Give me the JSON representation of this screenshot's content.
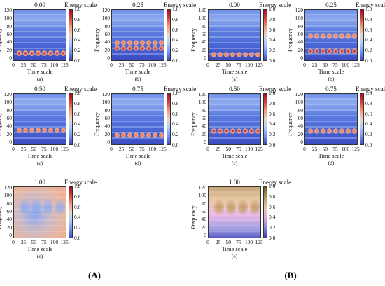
{
  "colors": {
    "scale_low": "#3b4cc0",
    "scale_high": "#b40426",
    "scale_e_low": "#3b3fb0",
    "scale_e_high": "#6e5a22"
  },
  "labels": {
    "energy": "Energy scale",
    "ylabel": "Frequency",
    "xlabel": "Time scale"
  },
  "group_labels": [
    "(A)",
    "(B)"
  ],
  "chart_data": {
    "type": "heatmap",
    "xlabel": "Time scale",
    "ylabel": "Frequency",
    "colorbar_label": "Energy scale",
    "xticks": [
      "0",
      "25",
      "50",
      "75",
      "100",
      "125"
    ],
    "yticks": [
      "0",
      "20",
      "40",
      "60",
      "80",
      "100",
      "120"
    ],
    "cticks": [
      "0.0",
      "0.2",
      "0.4",
      "0.6",
      "0.8",
      "1.0"
    ],
    "xlim": [
      0,
      125
    ],
    "ylim": [
      0,
      125
    ],
    "clim": [
      0.0,
      1.0
    ],
    "groups": [
      {
        "name": "(A)",
        "panels": [
          {
            "title": "0.00",
            "caption": "(a)"
          },
          {
            "title": "0.25",
            "caption": "(b)"
          },
          {
            "title": "0.50",
            "caption": "(c)"
          },
          {
            "title": "0.75",
            "caption": "(d)"
          },
          {
            "title": "1.00",
            "caption": "(e)"
          }
        ]
      },
      {
        "name": "(B)",
        "panels": [
          {
            "title": "0.00",
            "caption": "(a)"
          },
          {
            "title": "0.25",
            "caption": "(b)"
          },
          {
            "title": "0.50",
            "caption": "(c)"
          },
          {
            "title": "0.75",
            "caption": "(d)"
          },
          {
            "title": "1.00",
            "caption": "(e)"
          }
        ]
      }
    ]
  }
}
